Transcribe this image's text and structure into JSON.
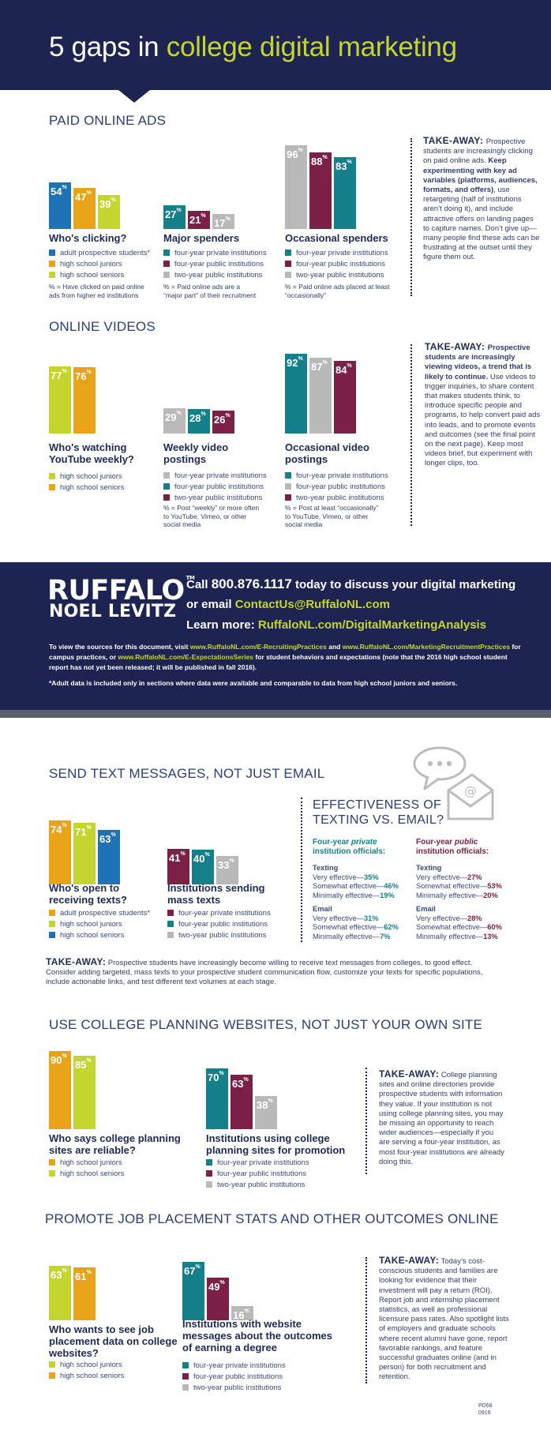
{
  "header": {
    "title_a": "5 gaps in ",
    "title_b": "college digital marketing"
  },
  "colors": {
    "navy": "#1d2452",
    "blue": "#1f73b5",
    "gold": "#e9a319",
    "lime": "#c5d52f",
    "teal": "#16808a",
    "maroon": "#7b2046",
    "gray": "#b9b9b9"
  },
  "sections": {
    "paid": "PAID ONLINE ADS",
    "videos": "ONLINE VIDEOS",
    "text": "SEND TEXT MESSAGES, NOT JUST EMAIL",
    "planning": "USE COLLEGE PLANNING WEBSITES, NOT JUST YOUR OWN SITE",
    "job": "PROMOTE JOB PLACEMENT STATS AND OTHER OUTCOMES ONLINE"
  },
  "chart_data": [
    {
      "id": "paid1",
      "type": "bar",
      "title": "Who's clicking?",
      "ylim": [
        0,
        100
      ],
      "series": [
        {
          "name": "adult prospective students*",
          "value": 54,
          "color": "#1f73b5"
        },
        {
          "name": "high school juniors",
          "value": 47,
          "color": "#e9a319"
        },
        {
          "name": "high school seniors",
          "value": 39,
          "color": "#c5d52f"
        }
      ],
      "note": [
        "% = Have clicked on paid online",
        "ads from higher ed institutions"
      ]
    },
    {
      "id": "paid2",
      "type": "bar",
      "title": "Major spenders",
      "ylim": [
        0,
        100
      ],
      "series": [
        {
          "name": "four-year private institutions",
          "value": 27,
          "color": "#16808a"
        },
        {
          "name": "four-year public institutions",
          "value": 21,
          "color": "#7b2046"
        },
        {
          "name": "two-year public institutions",
          "value": 17,
          "color": "#b9b9b9"
        }
      ],
      "note": [
        "% = Paid online ads are a",
        "“major part” of their recruitment"
      ]
    },
    {
      "id": "paid3",
      "type": "bar",
      "title": "Occasional spenders",
      "ylim": [
        0,
        100
      ],
      "series": [
        {
          "name": "",
          "value": 96,
          "color": "#b9b9b9"
        },
        {
          "name": "four-year private institutions",
          "value": 88,
          "color": "#7b2046"
        },
        {
          "name": "four-year public institutions",
          "value": 83,
          "color": "#16808a"
        },
        {
          "name": "two-year public institutions",
          "value": null,
          "color": "#b9b9b9"
        }
      ],
      "note": [
        "% = Paid online ads placed at least",
        "“occasionally”"
      ]
    },
    {
      "id": "vid1",
      "type": "bar",
      "title": "Who's watching YouTube weekly?",
      "ylim": [
        0,
        100
      ],
      "series": [
        {
          "name": "high school juniors",
          "value": 77,
          "color": "#c5d52f"
        },
        {
          "name": "high school seniors",
          "value": 76,
          "color": "#e9a319"
        }
      ]
    },
    {
      "id": "vid2",
      "type": "bar",
      "title": "Weekly video postings",
      "ylim": [
        0,
        100
      ],
      "series": [
        {
          "name": "four-year private institutions",
          "value": 29,
          "color": "#b9b9b9"
        },
        {
          "name": "four-year public institutions",
          "value": 28,
          "color": "#16808a"
        },
        {
          "name": "two-year public institutions",
          "value": 26,
          "color": "#7b2046"
        }
      ],
      "note": [
        "% = Post “weekly” or more often",
        "to YouTube, Vimeo, or other",
        "social media"
      ]
    },
    {
      "id": "vid3",
      "type": "bar",
      "title": "Occasional video postings",
      "ylim": [
        0,
        100
      ],
      "series": [
        {
          "name": "four-year private institutions",
          "value": 92,
          "color": "#16808a"
        },
        {
          "name": "four-year public institutions",
          "value": 87,
          "color": "#b9b9b9"
        },
        {
          "name": "two-year public institutions",
          "value": 84,
          "color": "#7b2046"
        }
      ],
      "note": [
        "% = Post at least “occasionally”",
        "to YouTube, Vimeo, or other",
        "social media"
      ]
    },
    {
      "id": "txt1",
      "type": "bar",
      "title": "Who's open to receiving texts?",
      "ylim": [
        0,
        100
      ],
      "series": [
        {
          "name": "adult prospective students*",
          "value": 74,
          "color": "#e9a319"
        },
        {
          "name": "high school juniors",
          "value": 71,
          "color": "#c5d52f"
        },
        {
          "name": "high school seniors",
          "value": 63,
          "color": "#1f73b5"
        }
      ]
    },
    {
      "id": "txt2",
      "type": "bar",
      "title": "Institutions sending mass texts",
      "ylim": [
        0,
        100
      ],
      "series": [
        {
          "name": "four-year private institutions",
          "value": 41,
          "color": "#7b2046"
        },
        {
          "name": "four-year public institutions",
          "value": 40,
          "color": "#16808a"
        },
        {
          "name": "two-year public institutions",
          "value": 33,
          "color": "#b9b9b9"
        }
      ]
    },
    {
      "id": "plan1",
      "type": "bar",
      "title": "Who says college planning sites are reliable?",
      "ylim": [
        0,
        100
      ],
      "series": [
        {
          "name": "high school juniors",
          "value": 90,
          "color": "#e9a319"
        },
        {
          "name": "high school seniors",
          "value": 85,
          "color": "#c5d52f"
        }
      ]
    },
    {
      "id": "plan2",
      "type": "bar",
      "title": "Institutions using college planning sites for promotion",
      "ylim": [
        0,
        100
      ],
      "series": [
        {
          "name": "four-year private institutions",
          "value": 70,
          "color": "#16808a"
        },
        {
          "name": "four-year public institutions",
          "value": 63,
          "color": "#7b2046"
        },
        {
          "name": "two-year public institutions",
          "value": 38,
          "color": "#b9b9b9"
        }
      ]
    },
    {
      "id": "job1",
      "type": "bar",
      "title": "Who wants to see job placement data on college websites?",
      "ylim": [
        0,
        100
      ],
      "series": [
        {
          "name": "high school juniors",
          "value": 63,
          "color": "#c5d52f"
        },
        {
          "name": "high school seniors",
          "value": 61,
          "color": "#e9a319"
        }
      ]
    },
    {
      "id": "job2",
      "type": "bar",
      "title": "Institutions with website messages about the outcomes of earning a degree",
      "ylim": [
        0,
        100
      ],
      "series": [
        {
          "name": "four-year private institutions",
          "value": 67,
          "color": "#16808a"
        },
        {
          "name": "four-year public institutions",
          "value": 49,
          "color": "#7b2046"
        },
        {
          "name": "two-year public institutions",
          "value": 16,
          "color": "#b9b9b9"
        }
      ]
    }
  ],
  "takeaways": {
    "label": "TAKE-AWAY:",
    "paid": [
      {
        "t": "Prospective students are increasingly clicking on paid online ads. ",
        "b": false
      },
      {
        "t": "Keep experimenting with key ad variables (platforms, audiences, formats, and offers)",
        "b": true
      },
      {
        "t": ", use retargeting (half of institutions aren’t doing it), and include attractive offers on landing pages to capture names. Don’t give up—many people find these ads can be frustrating at the outset until they figure them out.",
        "b": false
      }
    ],
    "videos": [
      {
        "t": "Prospective students are increasingly viewing videos, a trend that is likely to continue.",
        "b": true
      },
      {
        "t": " Use videos to trigger inquiries, to share content that makes students think, to introduce specific people and programs, to help convert paid ads into leads, and to promote events and outcomes (see the final point on the next page). Keep most videos brief, but experiment with longer clips, too.",
        "b": false
      }
    ],
    "text": "Prospective students have increasingly become willing to receive text messages from colleges, to good effect. Consider adding targeted, mass texts to your prospective student communication flow, customize your texts for specific populations, include actionable links, and test different text volumes at each stage.",
    "planning": "College planning sites and online directories provide prospective students with information they value. If your institution is not using college planning sites, you may be missing an opportunity to reach wider audiences—especially if you are serving a four-year institution, as most four-year institutions are already doing this.",
    "job": "Today’s cost-conscious students and families are looking for evidence that their investment will pay a return (ROI). Report job and internship placement statistics, as well as professional licensure pass rates. Also spotlight lists of employers and graduate schools where recent alumni have gone, report favorable rankings, and feature successful graduates online (and in person) for both recruitment and retention."
  },
  "effectiveness": {
    "title": "EFFECTIVENESS OF TEXTING VS. EMAIL?",
    "private_head_a": "Four-year ",
    "private_head_b": "private",
    "private_head_c": " institution officials:",
    "public_head_a": "Four-year ",
    "public_head_b": "public",
    "public_head_c": " institution officials:",
    "private": {
      "texting": [
        [
          "Very effective—",
          "35%"
        ],
        [
          "Somewhat effective—",
          "46%"
        ],
        [
          "Minimally effective—",
          "19%"
        ]
      ],
      "email": [
        [
          "Very effective—",
          "31%"
        ],
        [
          "Somewhat effective—",
          "62%"
        ],
        [
          "Minimally effective—",
          "7%"
        ]
      ]
    },
    "public": {
      "texting": [
        [
          "Very effective—",
          "27%"
        ],
        [
          "Somewhat effective—",
          "53%"
        ],
        [
          "Minimally effective—",
          "20%"
        ]
      ],
      "email": [
        [
          "Very effective—",
          "28%"
        ],
        [
          "Somewhat effective—",
          "60%"
        ],
        [
          "Minimally effective—",
          "13%"
        ]
      ]
    },
    "texting_label": "Texting",
    "email_label": "Email"
  },
  "cta": {
    "logo_top": "RUFFALO",
    "logo_tm": "TM",
    "logo_bottom": "NOEL LEVITZ",
    "call_a": "Call ",
    "phone": "800.876.1117",
    "call_b": " today to discuss your digital marketing or email ",
    "email": "ContactUs@RuffaloNL.com",
    "learn": "Learn more: ",
    "learn_url": "RuffaloNL.com/DigitalMarketingAnalysis",
    "sources": [
      {
        "t": "To view the sources for this document, visit ",
        "h": false
      },
      {
        "t": "www.RuffaloNL.com/E-RecruitingPractices",
        "h": true
      },
      {
        "t": " and ",
        "h": false
      },
      {
        "t": "www.RuffaloNL.com/MarketingRecruitmentPractices",
        "h": true
      },
      {
        "t": " for campus practices, or ",
        "h": false
      },
      {
        "t": "www.RuffaloNL.com/E-ExpectationsSeries",
        "h": true
      },
      {
        "t": " for student behaviors and expectations (note that the 2016 high school student report has not yet been released; it will be published in fall 2016).",
        "h": false
      }
    ],
    "adult_note": "*Adult data is included only in sections where data were available and comparable to data from high school juniors and seniors."
  },
  "footer": {
    "code1": "PD68",
    "code2": "0916"
  },
  "icons": [
    "speech-bubble-icon",
    "envelope-at-icon"
  ]
}
